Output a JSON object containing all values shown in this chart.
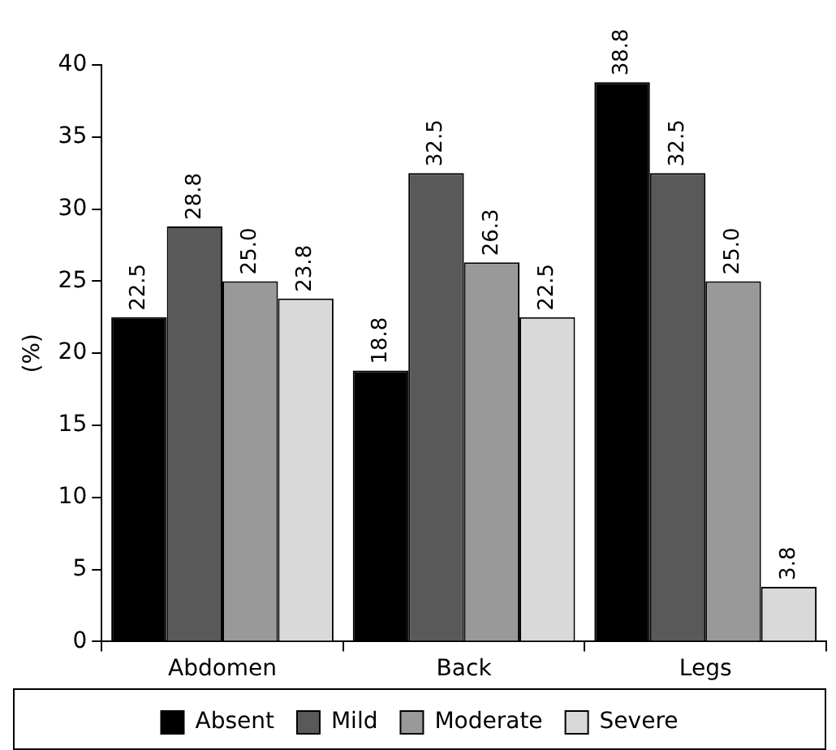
{
  "chart_data": {
    "type": "bar",
    "ylabel": "(%)",
    "categories": [
      "Abdomen",
      "Back",
      "Legs"
    ],
    "series": [
      {
        "name": "Absent",
        "color": "#000000",
        "values": [
          22.5,
          18.8,
          38.8
        ]
      },
      {
        "name": "Mild",
        "color": "#595959",
        "values": [
          28.8,
          32.5,
          32.5
        ]
      },
      {
        "name": "Moderate",
        "color": "#999999",
        "values": [
          25.0,
          26.3,
          25.0
        ]
      },
      {
        "name": "Severe",
        "color": "#d9d9d9",
        "values": [
          23.8,
          22.5,
          3.8
        ]
      }
    ],
    "value_labels": [
      [
        "22.5",
        "18.8",
        "38.8"
      ],
      [
        "28.8",
        "32.5",
        "32.5"
      ],
      [
        "25.0",
        "26.3",
        "25.0"
      ],
      [
        "23.8",
        "22.5",
        "3.8"
      ]
    ],
    "ylim": [
      0,
      40
    ],
    "yticks": [
      0,
      5,
      10,
      15,
      20,
      25,
      30,
      35,
      40
    ],
    "grid": false,
    "legend": "bottom"
  }
}
